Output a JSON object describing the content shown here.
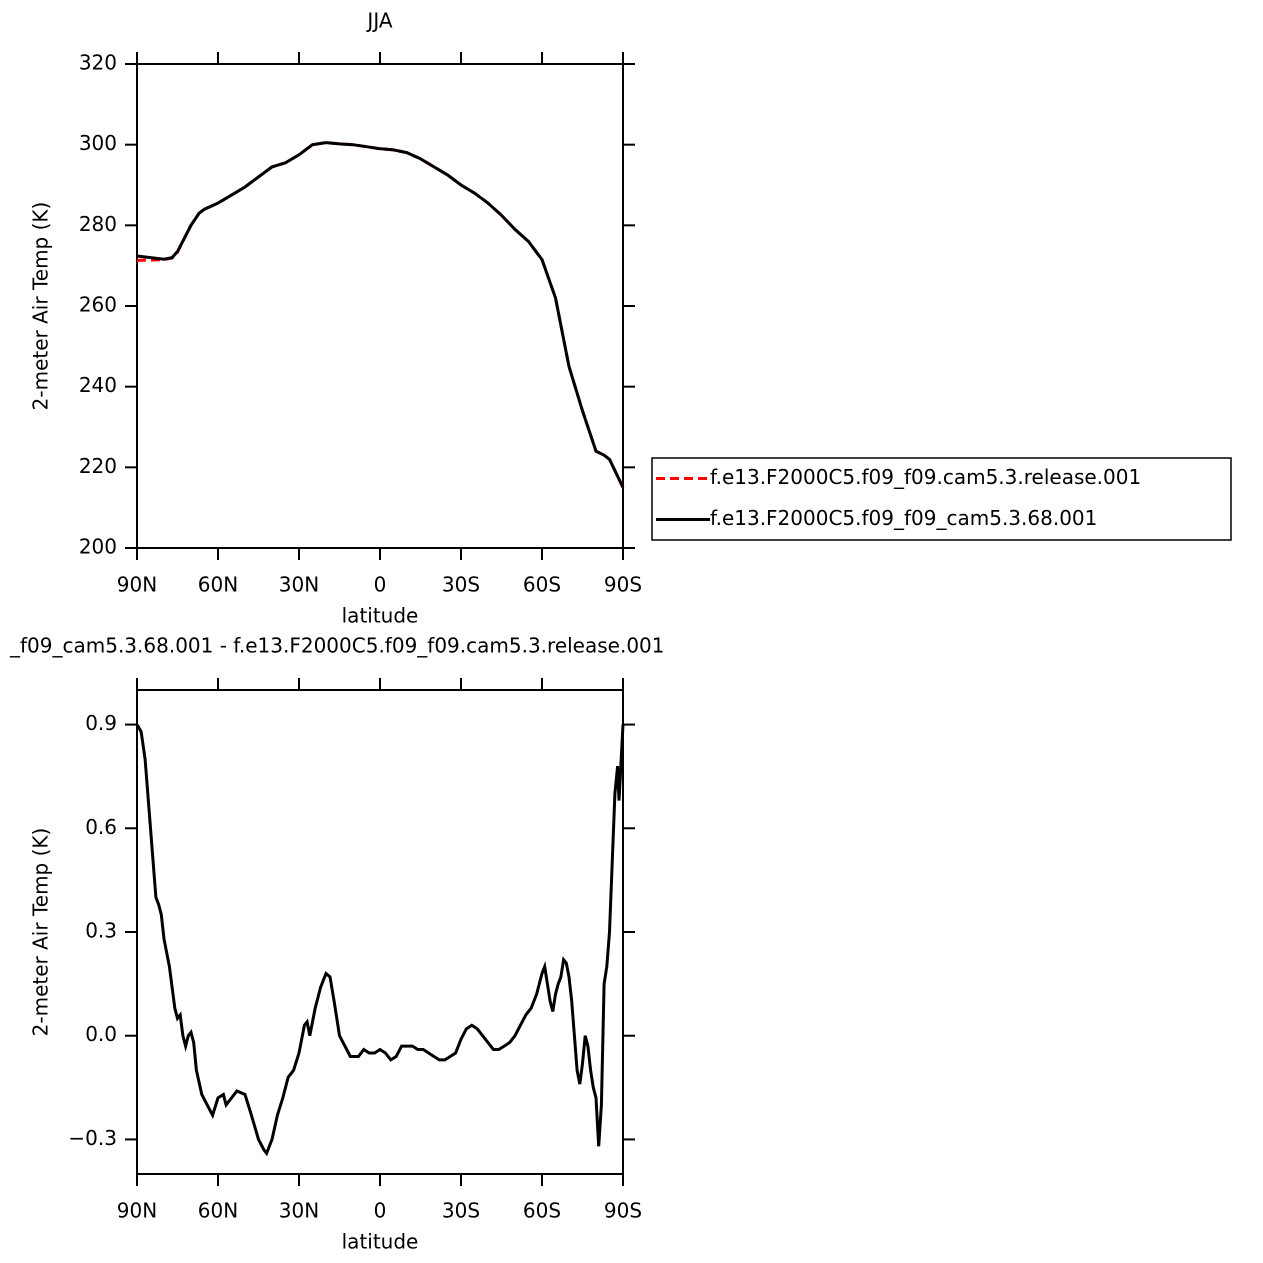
{
  "chart_data": [
    {
      "type": "line",
      "title": "JJA",
      "xlabel": "latitude",
      "ylabel": "2-meter Air Temp (K)",
      "x": [
        90,
        85,
        80,
        77,
        75,
        70,
        67,
        65,
        60,
        55,
        50,
        45,
        40,
        35,
        30,
        25,
        20,
        15,
        10,
        5,
        0,
        -5,
        -10,
        -15,
        -20,
        -25,
        -30,
        -35,
        -40,
        -45,
        -50,
        -55,
        -60,
        -65,
        -70,
        -75,
        -80,
        -83,
        -85,
        -90
      ],
      "series": [
        {
          "name": "f.e13.F2000C5.f09_f09.cam5.3.release.001",
          "color": "#ff0000",
          "dashed": true,
          "values": [
            271.3,
            271.4,
            271.5,
            271.9,
            273.4,
            280,
            283,
            284,
            285.5,
            287.5,
            289.5,
            292,
            294.5,
            295.5,
            297.5,
            300,
            300.5,
            300.2,
            300,
            299.5,
            299,
            298.7,
            298,
            296.5,
            294.5,
            292.5,
            290,
            288,
            285.5,
            282.5,
            279,
            276,
            271.5,
            262,
            245,
            234,
            224,
            223,
            222,
            215
          ]
        },
        {
          "name": "f.e13.F2000C5.f09_f09_cam5.3.68.001",
          "color": "#000000",
          "dashed": false,
          "values": [
            272.4,
            272.0,
            271.6,
            272,
            273.5,
            280,
            283,
            284,
            285.5,
            287.5,
            289.5,
            292,
            294.5,
            295.5,
            297.5,
            300,
            300.5,
            300.2,
            300,
            299.5,
            299,
            298.7,
            298,
            296.5,
            294.5,
            292.5,
            290,
            288,
            285.5,
            282.5,
            279,
            276,
            271.5,
            262,
            245,
            234,
            224,
            223,
            222,
            215
          ]
        }
      ],
      "xlim": [
        90,
        -90
      ],
      "xticks": [
        {
          "value": 90,
          "label": "90N"
        },
        {
          "value": 60,
          "label": "60N"
        },
        {
          "value": 30,
          "label": "30N"
        },
        0,
        {
          "value": -30,
          "label": "30S"
        },
        {
          "value": -60,
          "label": "60S"
        },
        {
          "value": -90,
          "label": "90S"
        }
      ],
      "ylim": [
        200,
        320
      ],
      "yticks": [
        200,
        220,
        240,
        260,
        280,
        300,
        320
      ],
      "legend": "right"
    },
    {
      "type": "line",
      "title": "_f09_cam5.3.68.001 - f.e13.F2000C5.f09_f09.cam5.3.release.001",
      "xlabel": "latitude",
      "ylabel": "2-meter Air Temp (K)",
      "x": [
        90,
        88.5,
        87,
        85,
        83,
        82,
        81,
        80,
        78,
        76,
        75,
        74,
        73,
        72,
        71,
        70,
        69,
        68,
        66,
        64,
        62,
        60,
        58,
        57,
        55,
        53,
        50,
        48,
        45,
        43,
        42,
        40,
        38,
        36,
        34,
        32,
        30,
        28,
        27,
        26,
        24,
        22,
        20,
        18.5,
        17,
        15,
        13,
        11,
        8,
        6,
        4,
        2,
        0,
        -2,
        -4,
        -6,
        -8,
        -10,
        -12,
        -14,
        -16,
        -18,
        -20,
        -22,
        -24,
        -26,
        -28,
        -30,
        -32,
        -34,
        -36,
        -38,
        -40,
        -42,
        -44,
        -46,
        -48,
        -50,
        -52,
        -54,
        -56,
        -58,
        -60,
        -61,
        -62,
        -63,
        -64,
        -65,
        -66,
        -67,
        -68,
        -69,
        -70,
        -71,
        -72,
        -73,
        -74,
        -75,
        -76,
        -77,
        -78,
        -79,
        -80,
        -81,
        -82,
        -83,
        -84,
        -85,
        -86,
        -87,
        -88,
        -88.5,
        -89,
        -90
      ],
      "values": [
        0.9,
        0.88,
        0.8,
        0.6,
        0.4,
        0.38,
        0.35,
        0.28,
        0.2,
        0.08,
        0.05,
        0.06,
        0.0,
        -0.03,
        0.0,
        0.01,
        -0.02,
        -0.1,
        -0.17,
        -0.2,
        -0.23,
        -0.18,
        -0.17,
        -0.2,
        -0.18,
        -0.16,
        -0.17,
        -0.22,
        -0.3,
        -0.33,
        -0.34,
        -0.3,
        -0.23,
        -0.18,
        -0.12,
        -0.1,
        -0.05,
        0.03,
        0.04,
        0.0,
        0.08,
        0.14,
        0.18,
        0.17,
        0.1,
        0.0,
        -0.03,
        -0.06,
        -0.06,
        -0.04,
        -0.05,
        -0.05,
        -0.04,
        -0.05,
        -0.07,
        -0.06,
        -0.03,
        -0.03,
        -0.03,
        -0.04,
        -0.04,
        -0.05,
        -0.06,
        -0.07,
        -0.07,
        -0.06,
        -0.05,
        -0.01,
        0.02,
        0.03,
        0.02,
        0.0,
        -0.02,
        -0.04,
        -0.04,
        -0.03,
        -0.02,
        0.0,
        0.03,
        0.06,
        0.08,
        0.12,
        0.18,
        0.2,
        0.15,
        0.1,
        0.07,
        0.12,
        0.15,
        0.17,
        0.22,
        0.21,
        0.17,
        0.1,
        0.0,
        -0.1,
        -0.14,
        -0.08,
        0.0,
        -0.03,
        -0.1,
        -0.15,
        -0.18,
        -0.32,
        -0.2,
        0.15,
        0.2,
        0.3,
        0.5,
        0.7,
        0.78,
        0.68,
        0.75,
        0.9
      ],
      "color": "#000000",
      "xlim": [
        90,
        -90
      ],
      "xticks": [
        {
          "value": 90,
          "label": "90N"
        },
        {
          "value": 60,
          "label": "60N"
        },
        {
          "value": 30,
          "label": "30N"
        },
        0,
        {
          "value": -30,
          "label": "30S"
        },
        {
          "value": -60,
          "label": "60S"
        },
        {
          "value": -90,
          "label": "90S"
        }
      ],
      "ylim": [
        -0.4,
        1.0
      ],
      "yticks": [
        {
          "value": -0.3,
          "label": "−0.3"
        },
        {
          "value": 0,
          "label": "0.0"
        },
        0.3,
        0.6,
        0.9
      ]
    }
  ]
}
